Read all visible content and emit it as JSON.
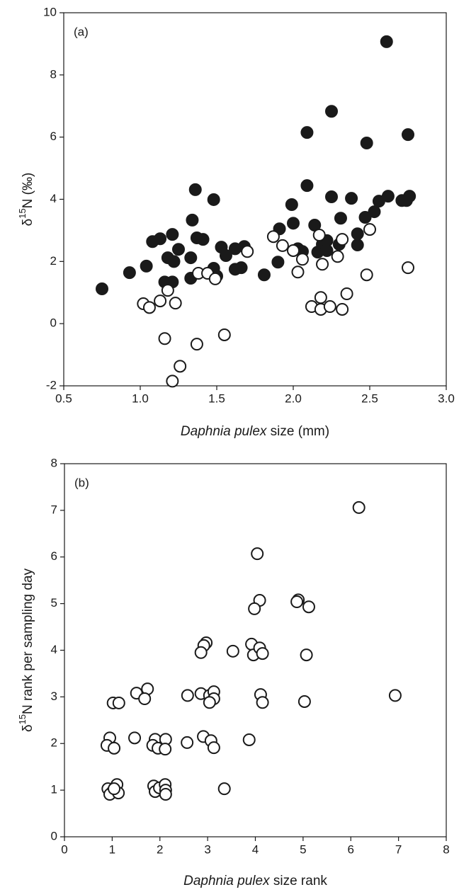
{
  "chart_data": [
    {
      "type": "scatter",
      "annotation": "(a)",
      "xlabel": {
        "italic": "Daphnia pulex",
        "rest": " size (mm)"
      },
      "ylabel": {
        "prefix": "δ",
        "sup": "15",
        "suffix": "N (‰)"
      },
      "xlim": [
        0.5,
        3.0
      ],
      "ylim": [
        -2,
        10
      ],
      "xticks": [
        0.5,
        {
          "value": 1,
          "label": "1.0"
        },
        1.5,
        {
          "value": 2,
          "label": "2.0"
        },
        2.5,
        {
          "value": 3,
          "label": "3.0"
        }
      ],
      "yticks": [
        -2,
        0,
        2,
        4,
        6,
        8,
        10
      ],
      "series": [
        {
          "facecolor": "#1a1a1a",
          "edgecolor": "#1a1a1a",
          "x": [
            0.75,
            0.93,
            1.04,
            1.08,
            1.13,
            1.21,
            1.18,
            1.16,
            1.22,
            1.25,
            1.21,
            1.33,
            1.34,
            1.36,
            1.37,
            1.33,
            1.41,
            1.48,
            1.48,
            1.5,
            1.53,
            1.56,
            1.62,
            1.62,
            1.66,
            1.68,
            1.81,
            1.91,
            1.9,
            1.99,
            2.0,
            2.03,
            2.06,
            2.09,
            2.09,
            2.14,
            2.16,
            2.19,
            2.22,
            2.25,
            2.25,
            2.31,
            2.3,
            2.38,
            2.42,
            2.42,
            2.48,
            2.47,
            2.53,
            2.56,
            2.61,
            2.62,
            2.71,
            2.75,
            2.76,
            2.74,
            2.22
          ],
          "values": [
            1.12,
            1.64,
            1.85,
            2.64,
            2.73,
            2.87,
            2.12,
            1.34,
            2.0,
            2.39,
            1.34,
            2.12,
            3.33,
            4.31,
            2.76,
            1.46,
            2.71,
            3.99,
            1.78,
            1.53,
            2.46,
            2.19,
            2.41,
            1.75,
            1.8,
            2.48,
            1.57,
            3.05,
            1.98,
            3.83,
            3.23,
            2.41,
            2.32,
            6.15,
            4.44,
            3.17,
            2.3,
            2.55,
            2.67,
            6.83,
            4.08,
            3.39,
            2.55,
            4.03,
            2.53,
            2.89,
            5.81,
            3.42,
            3.6,
            3.94,
            9.07,
            4.1,
            3.96,
            6.08,
            4.1,
            3.96,
            2.35
          ]
        },
        {
          "facecolor": "#ffffff",
          "edgecolor": "#1a1a1a",
          "x": [
            1.02,
            1.06,
            1.13,
            1.18,
            1.16,
            1.23,
            1.21,
            1.26,
            1.37,
            1.38,
            1.44,
            1.49,
            1.55,
            1.7,
            1.87,
            1.93,
            2.0,
            2.03,
            2.06,
            2.12,
            2.17,
            2.18,
            2.18,
            2.19,
            2.24,
            2.29,
            2.32,
            2.32,
            2.35,
            2.48,
            2.5,
            2.75
          ],
          "values": [
            0.64,
            0.52,
            0.73,
            1.07,
            -0.48,
            0.66,
            -1.85,
            -1.37,
            -0.66,
            1.62,
            1.62,
            1.44,
            -0.36,
            2.32,
            2.8,
            2.51,
            2.35,
            1.66,
            2.07,
            0.55,
            2.85,
            0.84,
            0.46,
            1.91,
            0.55,
            2.16,
            2.71,
            0.46,
            0.96,
            1.57,
            3.03,
            1.8
          ]
        }
      ]
    },
    {
      "type": "scatter",
      "annotation": "(b)",
      "xlabel": {
        "italic": "Daphnia pulex",
        "rest": " size rank"
      },
      "ylabel": {
        "prefix": "δ",
        "sup": "15",
        "suffix": "N rank per sampling day"
      },
      "xlim": [
        0,
        8
      ],
      "ylim": [
        0,
        8
      ],
      "xticks": [
        0,
        1,
        2,
        3,
        4,
        5,
        6,
        7,
        8
      ],
      "yticks": [
        0,
        1,
        2,
        3,
        4,
        5,
        6,
        7,
        8
      ],
      "series": [
        {
          "facecolor": "#ffffff",
          "edgecolor": "#1a1a1a",
          "x": [
            6.17,
            4.04,
            4.09,
            3.98,
            4.9,
            4.87,
            5.12,
            2.97,
            2.92,
            2.86,
            3.53,
            3.92,
            3.96,
            4.09,
            4.15,
            5.07,
            1.51,
            1.74,
            1.68,
            2.58,
            2.86,
            3.04,
            3.13,
            3.13,
            3.04,
            4.11,
            4.15,
            5.03,
            6.93,
            1.02,
            1.14,
            0.95,
            0.89,
            1.04,
            1.47,
            1.9,
            1.85,
            1.96,
            2.12,
            2.11,
            2.57,
            2.91,
            3.07,
            3.13,
            3.87,
            3.35,
            0.91,
            1.0,
            0.95,
            1.1,
            1.13,
            1.04,
            1.87,
            1.9,
            1.99,
            2.11,
            2.12,
            2.12
          ],
          "values": [
            7.06,
            6.07,
            5.07,
            4.89,
            5.08,
            5.04,
            4.93,
            4.16,
            4.1,
            3.95,
            3.98,
            4.13,
            3.9,
            4.05,
            3.93,
            3.9,
            3.08,
            3.17,
            2.96,
            3.03,
            3.07,
            3.03,
            3.11,
            2.96,
            2.88,
            3.05,
            2.88,
            2.9,
            3.03,
            2.87,
            2.87,
            2.12,
            1.96,
            1.9,
            2.12,
            2.09,
            1.96,
            1.9,
            2.09,
            1.88,
            2.02,
            2.15,
            2.06,
            1.91,
            2.08,
            1.03,
            1.03,
            0.96,
            0.91,
            1.12,
            0.94,
            1.03,
            1.09,
            0.97,
            1.05,
            1.12,
            1.0,
            0.91
          ]
        }
      ]
    }
  ]
}
